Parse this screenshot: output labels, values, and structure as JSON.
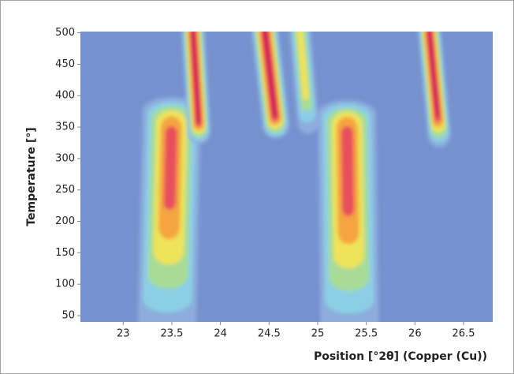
{
  "chart_data": {
    "type": "contour",
    "xlabel": "Position [°2θ] (Copper (Cu))",
    "ylabel": "Temperature [°]",
    "xlim": [
      22.56,
      26.8
    ],
    "ylim": [
      40,
      502
    ],
    "xticks": [
      23,
      23.5,
      24,
      24.5,
      25,
      25.5,
      26,
      26.5
    ],
    "yticks": [
      50,
      100,
      150,
      200,
      250,
      300,
      350,
      400,
      450,
      500
    ],
    "background_color": "#7592cf",
    "colors": [
      "#8cadde",
      "#8ccfe4",
      "#a8dc96",
      "#efe35a",
      "#f4a440",
      "#e8505c",
      "#d01e52"
    ],
    "peaks": [
      {
        "x": 23.45,
        "x_top": 23.5,
        "width": 0.3,
        "y": [
          40,
          375
        ],
        "core": [
          230,
          340
        ],
        "level": 5
      },
      {
        "x": 23.78,
        "x_top": 23.72,
        "width": 0.12,
        "y": [
          345,
          500
        ],
        "core": [
          360,
          500
        ],
        "level": 6
      },
      {
        "x": 24.57,
        "x_top": 24.46,
        "width": 0.14,
        "y": [
          355,
          500
        ],
        "core": [
          370,
          500
        ],
        "level": 6
      },
      {
        "x": 24.9,
        "x_top": 24.82,
        "width": 0.11,
        "y": [
          360,
          500
        ],
        "core": [
          400,
          500
        ],
        "level": 3
      },
      {
        "x": 25.33,
        "x_top": 25.3,
        "width": 0.3,
        "y": [
          40,
          370
        ],
        "core": [
          220,
          340
        ],
        "level": 5
      },
      {
        "x": 26.25,
        "x_top": 26.15,
        "width": 0.12,
        "y": [
          340,
          500
        ],
        "core": [
          370,
          500
        ],
        "level": 6
      }
    ]
  }
}
